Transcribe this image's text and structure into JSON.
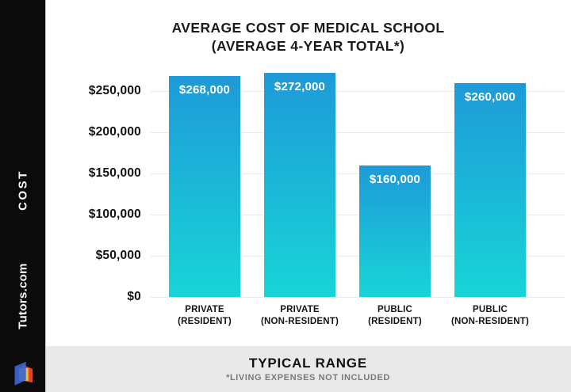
{
  "sidebar": {
    "vertical_label": "COST",
    "brand": "Tutors.com",
    "logo_colors": {
      "blue": "#3a66d2",
      "yellow": "#f2c21c",
      "red": "#e0452e"
    }
  },
  "footer": {
    "title": "TYPICAL RANGE",
    "subtitle": "*LIVING EXPENSES NOT INCLUDED"
  },
  "chart_data": {
    "type": "bar",
    "title": "AVERAGE COST OF MEDICAL SCHOOL (AVERAGE 4-YEAR TOTAL*)",
    "title_line1": "AVERAGE COST OF MEDICAL SCHOOL",
    "title_line2": "(AVERAGE 4-YEAR TOTAL*)",
    "categories": [
      "PRIVATE (RESIDENT)",
      "PRIVATE (NON-RESIDENT)",
      "PUBLIC (RESIDENT)",
      "PUBLIC (NON-RESIDENT)"
    ],
    "category_lines": [
      [
        "PRIVATE",
        "(RESIDENT)"
      ],
      [
        "PRIVATE",
        "(NON-RESIDENT)"
      ],
      [
        "PUBLIC",
        "(RESIDENT)"
      ],
      [
        "PUBLIC",
        "(NON-RESIDENT)"
      ]
    ],
    "values": [
      268000,
      272000,
      160000,
      260000
    ],
    "bar_labels": [
      "$268,000",
      "$272,000",
      "$160,000",
      "$260,000"
    ],
    "ylabel": "COST",
    "y_ticks": [
      {
        "label": "$250,000",
        "value": 250000
      },
      {
        "label": "$200,000",
        "value": 200000
      },
      {
        "label": "$150,000",
        "value": 150000
      },
      {
        "label": "$100,000",
        "value": 100000
      },
      {
        "label": "$50,000",
        "value": 50000
      },
      {
        "label": "$0",
        "value": 0
      }
    ],
    "ylim": [
      0,
      280000
    ],
    "grid": true,
    "legend": "none",
    "colors": {
      "bar_top": "#1e9ad8",
      "bar_bottom": "#18d5d8",
      "gridline": "#ebebeb",
      "value_label": "#ffffff"
    }
  }
}
